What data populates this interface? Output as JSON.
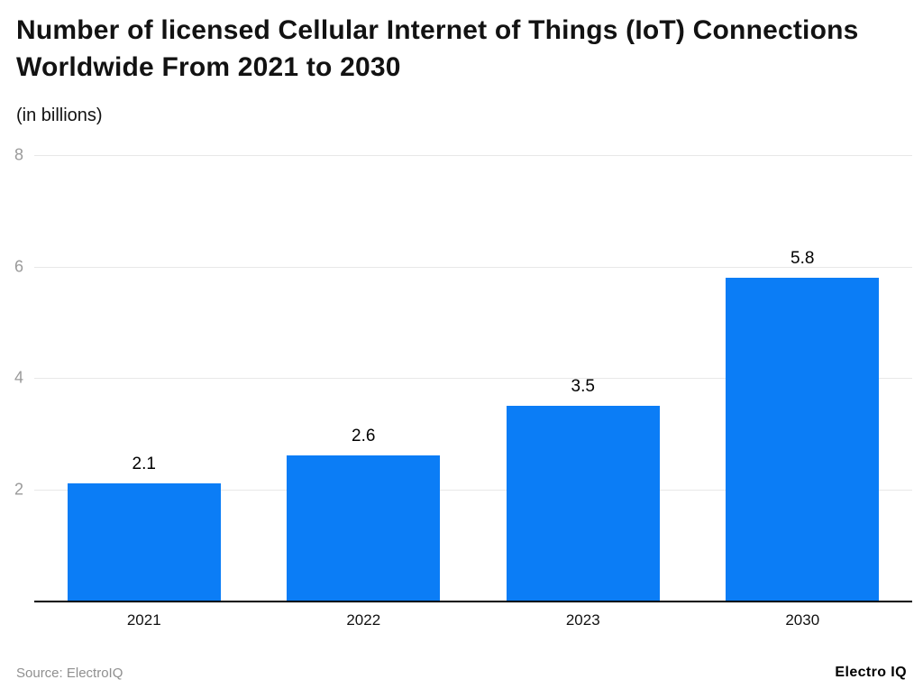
{
  "chart_data": {
    "type": "bar",
    "title": "Number of licensed Cellular Internet of Things (IoT) Connections Worldwide From 2021 to 2030",
    "subtitle": "(in billions)",
    "categories": [
      "2021",
      "2022",
      "2023",
      "2030"
    ],
    "values": [
      2.1,
      2.6,
      3.5,
      5.8
    ],
    "value_labels": [
      "2.1",
      "2.6",
      "3.5",
      "5.8"
    ],
    "ylim": [
      0,
      8
    ],
    "yticks": [
      2,
      4,
      6,
      8
    ],
    "ytick_labels": [
      "2",
      "4",
      "6",
      "8"
    ],
    "bar_color": "#0b7df6",
    "grid": true,
    "legend_position": "none",
    "xlabel": "",
    "ylabel": ""
  },
  "footer": {
    "source": "Source: ElectroIQ",
    "brand": "Electro IQ"
  }
}
